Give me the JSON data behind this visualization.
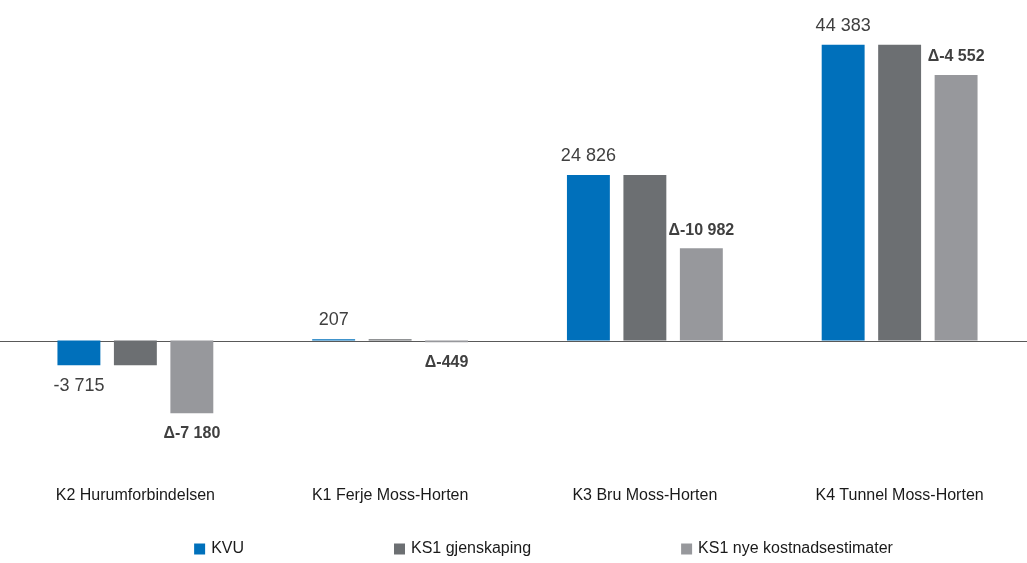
{
  "chart_data": {
    "type": "bar",
    "categories": [
      "K2 Hurumforbindelsen",
      "K1 Ferje Moss-Horten",
      "K3 Bru Moss-Horten",
      "K4 Tunnel Moss-Horten"
    ],
    "series": [
      {
        "name": "KVU",
        "color": "#0070bb",
        "values": [
          -3715,
          207,
          24826,
          44383
        ],
        "value_labels": [
          "-3 715",
          "207",
          "24 826",
          "44 383"
        ]
      },
      {
        "name": "KS1 gjenskaping",
        "color": "#6c6f72",
        "values": [
          -3715,
          207,
          24826,
          44383
        ]
      },
      {
        "name": "KS1 nye kostnadsestimater",
        "color": "#97989c",
        "values": [
          -10895,
          -242,
          13844,
          39831
        ],
        "value_labels": [
          "Δ-7 180",
          "Δ-449",
          "Δ-10 982",
          "Δ-4 552"
        ]
      }
    ],
    "legend": "bottom"
  }
}
